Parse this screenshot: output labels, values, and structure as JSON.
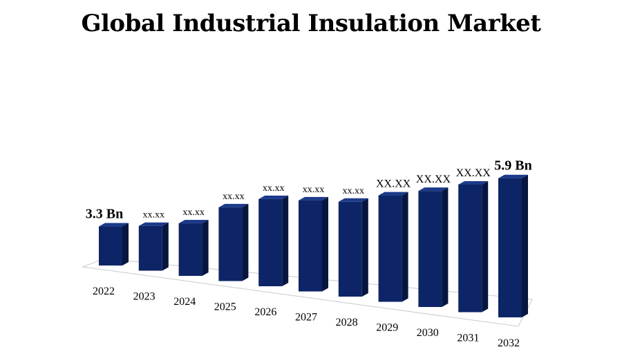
{
  "chart_data": {
    "type": "bar",
    "title": "Global Industrial Insulation Market",
    "categories": [
      "2022",
      "2023",
      "2024",
      "2025",
      "2026",
      "2027",
      "2028",
      "2029",
      "2030",
      "2031",
      "2032"
    ],
    "values": [
      3.3,
      3.45,
      3.65,
      4.2,
      4.55,
      4.65,
      4.75,
      5.05,
      5.3,
      5.6,
      5.9
    ],
    "labels": [
      "3.3 Bn",
      "xx.xx",
      "xx.xx",
      "xx.xx",
      "xx.xx",
      "xx.xx",
      "xx.xx",
      "XX.XX",
      "XX.XX",
      "XX.XX",
      "5.9 Bn"
    ],
    "unit": "Bn",
    "xlabel": "",
    "ylabel": "",
    "bar_color": "#0d2566",
    "bar_side_color": "#071640",
    "bar_top_color": "#1c3a8a"
  }
}
